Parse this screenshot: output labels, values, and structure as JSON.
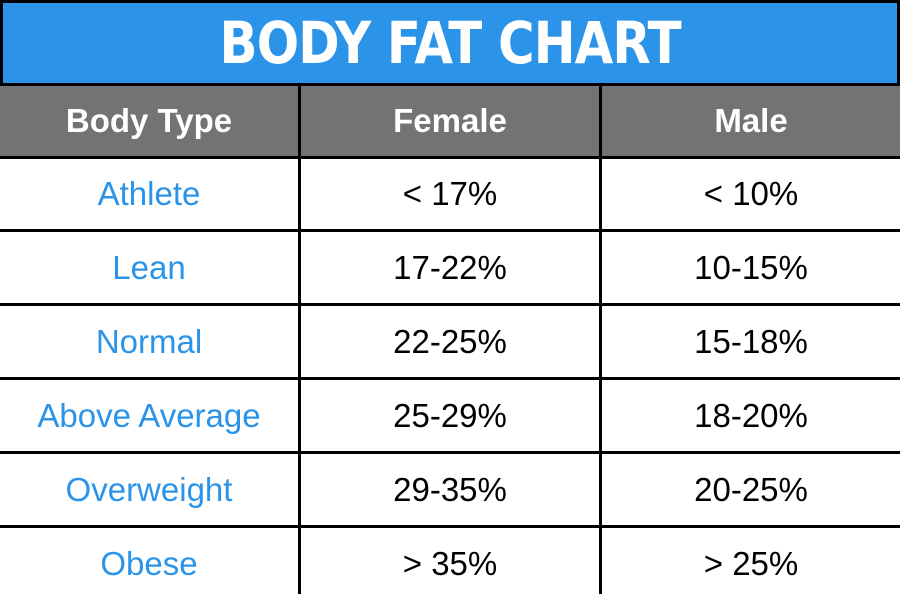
{
  "chart_data": {
    "type": "table",
    "title": "BODY FAT CHART",
    "columns": [
      "Body Type",
      "Female",
      "Male"
    ],
    "rows": [
      [
        "Athlete",
        "< 17%",
        "< 10%"
      ],
      [
        "Lean",
        "17-22%",
        "10-15%"
      ],
      [
        "Normal",
        "22-25%",
        "15-18%"
      ],
      [
        "Above Average",
        "25-29%",
        "18-20%"
      ],
      [
        "Overweight",
        "29-35%",
        "20-25%"
      ],
      [
        "Obese",
        "> 35%",
        "> 25%"
      ]
    ]
  },
  "colors": {
    "title_bg": "#2b94e8",
    "header_bg": "#737373",
    "body_type_text": "#2b94e8",
    "grid_lines": "#000000"
  }
}
